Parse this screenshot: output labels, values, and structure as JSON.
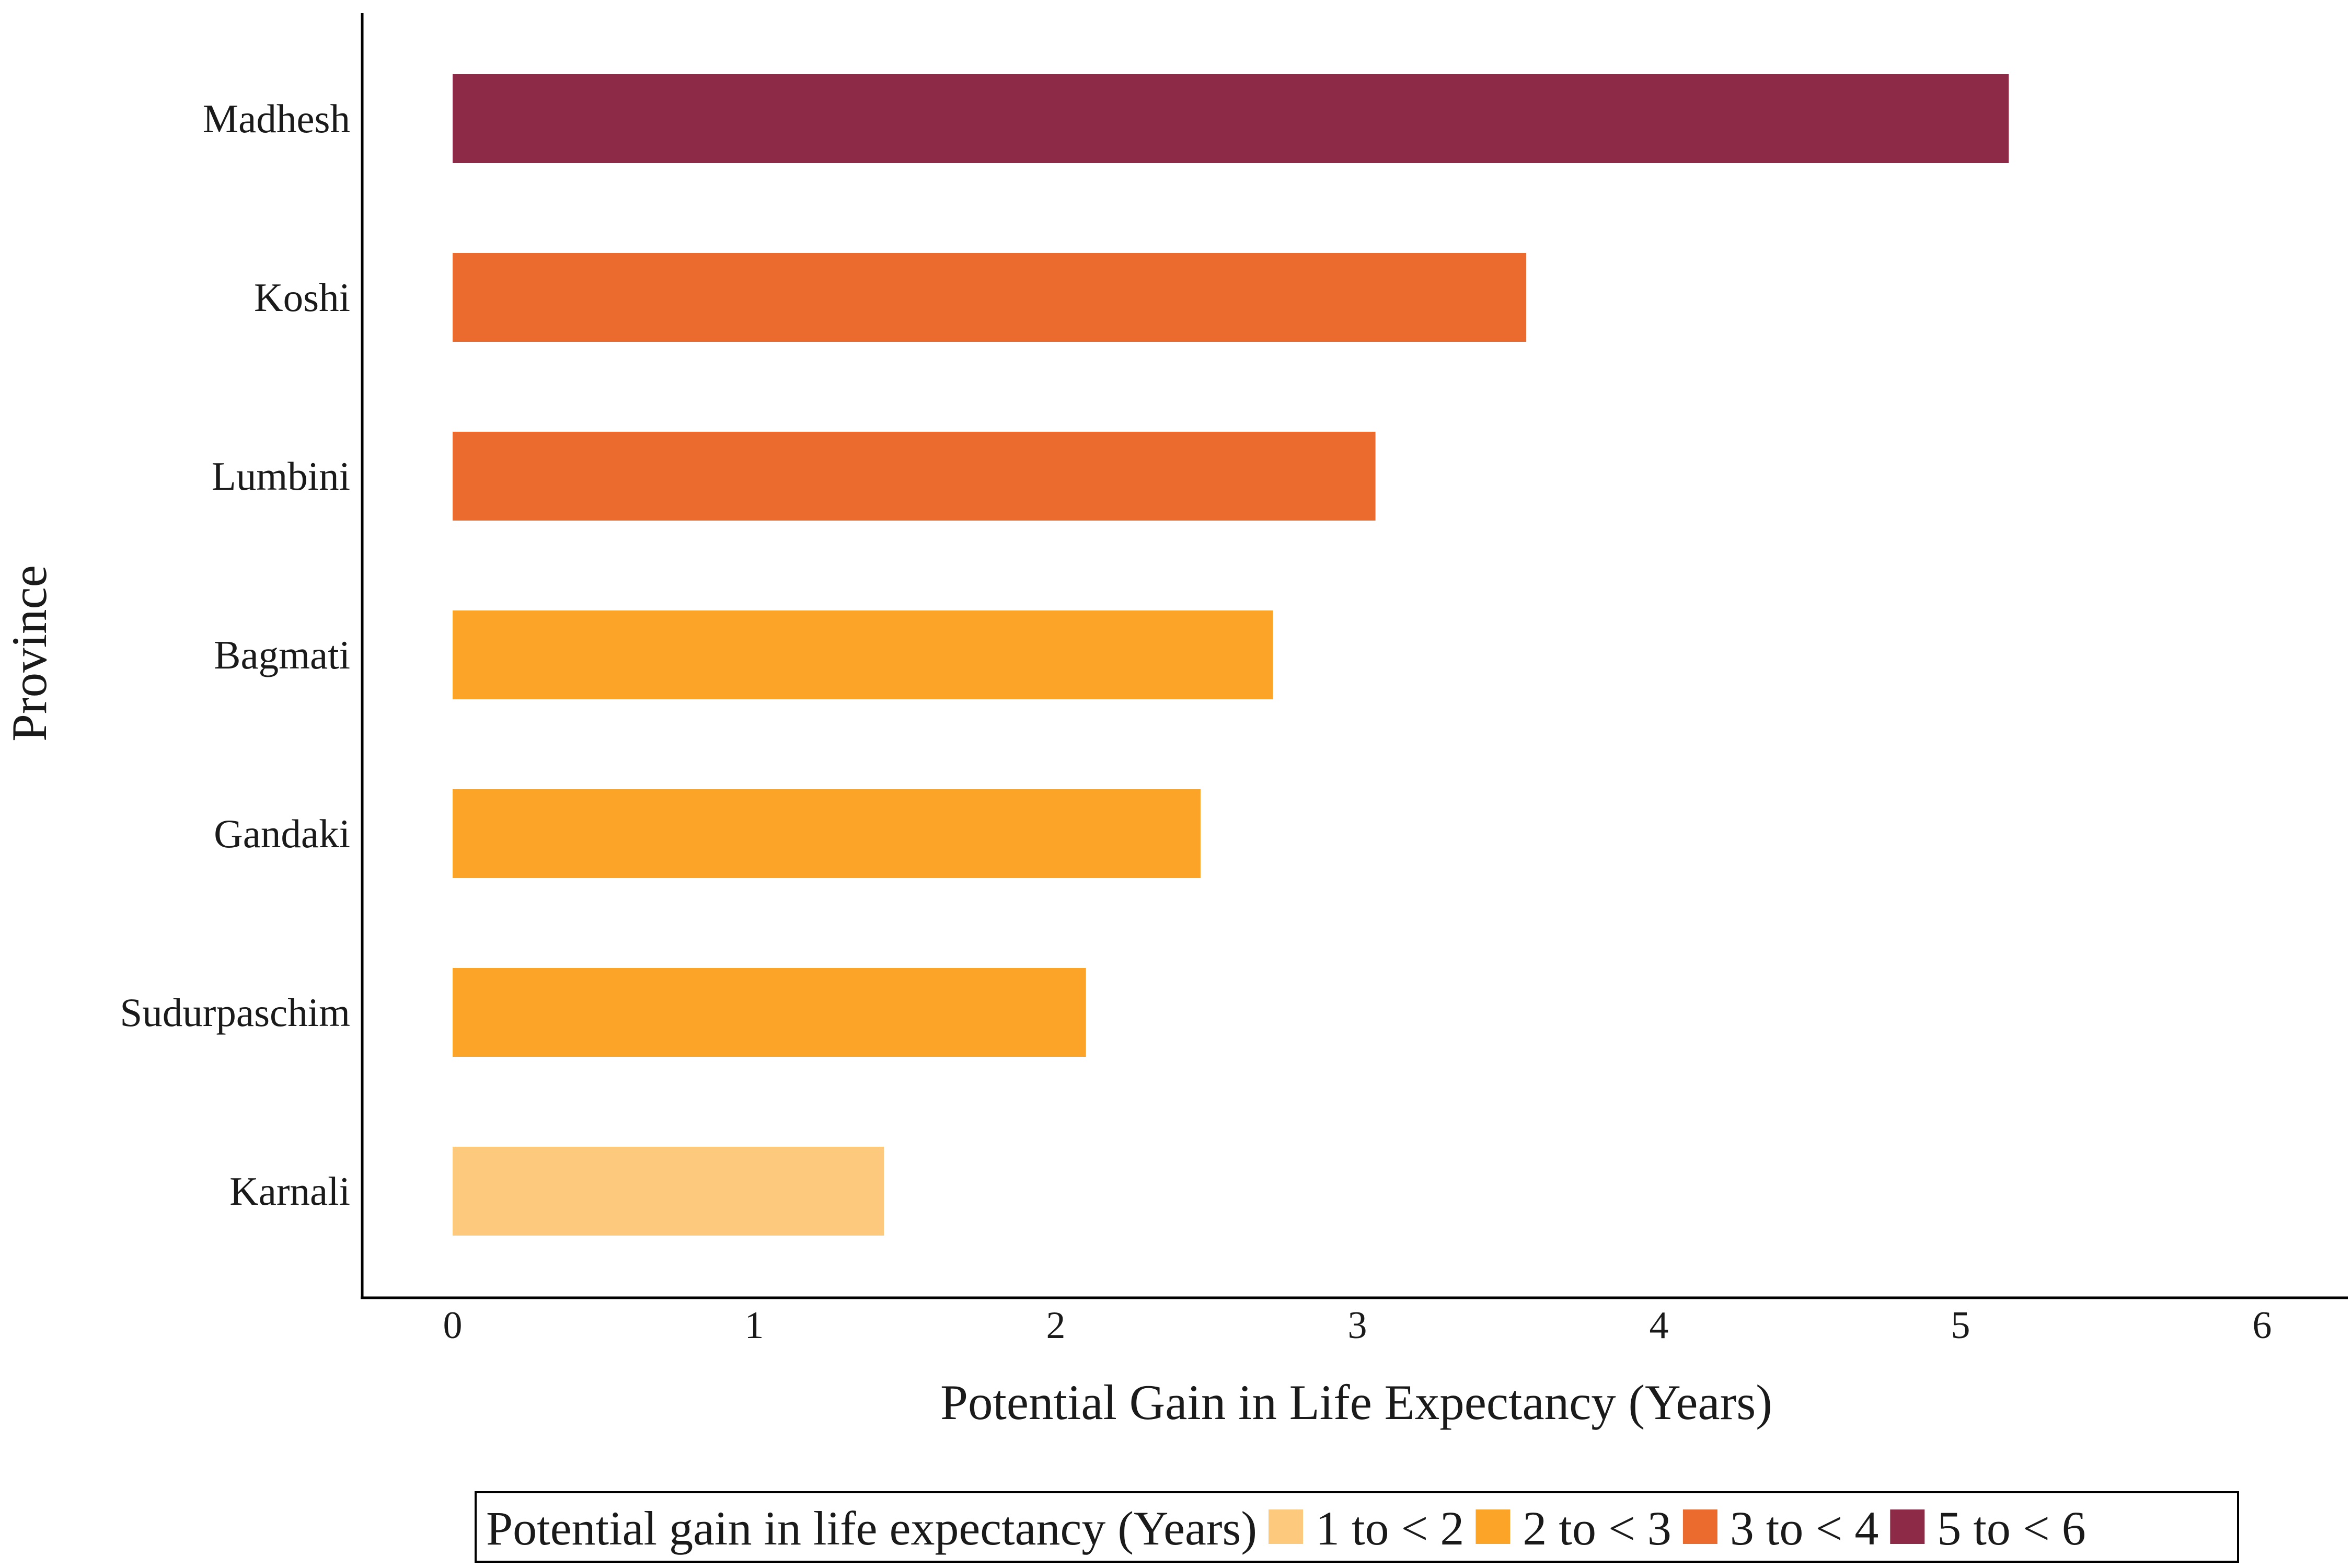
{
  "chart_data": {
    "type": "bar",
    "orientation": "horizontal",
    "xlabel": "Potential Gain in Life Expectancy (Years)",
    "ylabel": "Province",
    "xlim": [
      0,
      6
    ],
    "xticks": [
      "0",
      "1",
      "2",
      "3",
      "4",
      "5",
      "6"
    ],
    "grid": false,
    "categories": [
      "Madhesh",
      "Koshi",
      "Lumbini",
      "Bagmati",
      "Gandaki",
      "Sudurpaschim",
      "Karnali"
    ],
    "values": [
      5.16,
      3.56,
      3.06,
      2.72,
      2.48,
      2.1,
      1.43
    ],
    "bar_groups": [
      "5 to < 6",
      "3 to < 4",
      "3 to < 4",
      "2 to < 3",
      "2 to < 3",
      "2 to < 3",
      "1 to < 2"
    ],
    "legend": {
      "title": "Potential gain in life expectancy (Years)",
      "placement": "bottom",
      "entries": [
        {
          "label": "1 to < 2",
          "color": "#FDC97D"
        },
        {
          "label": "2 to < 3",
          "color": "#FCA427"
        },
        {
          "label": "3 to < 4",
          "color": "#EA6B2D"
        },
        {
          "label": "5 to < 6",
          "color": "#8C2A47"
        }
      ]
    }
  }
}
